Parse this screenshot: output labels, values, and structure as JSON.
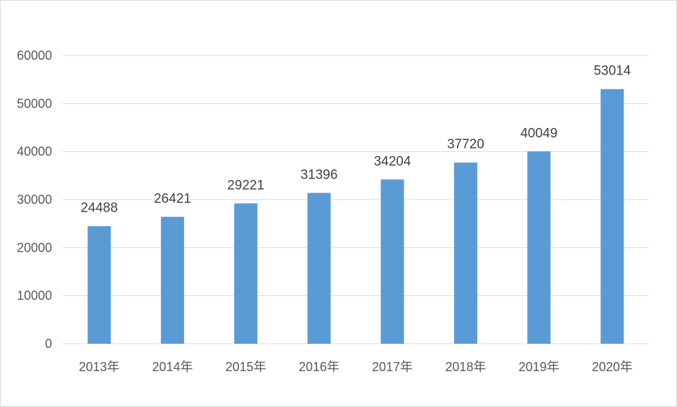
{
  "chart_data": {
    "type": "bar",
    "title": "",
    "xlabel": "",
    "ylabel": "",
    "categories": [
      "2013年",
      "2014年",
      "2015年",
      "2016年",
      "2017年",
      "2018年",
      "2019年",
      "2020年"
    ],
    "values": [
      24488,
      26421,
      29221,
      31396,
      34204,
      37720,
      40049,
      53014
    ],
    "ylim": [
      0,
      60000
    ],
    "yticks": [
      "0",
      "10000",
      "20000",
      "30000",
      "40000",
      "50000",
      "60000"
    ],
    "grid": true,
    "legend": "none",
    "bar_color": "#5b9bd5"
  }
}
